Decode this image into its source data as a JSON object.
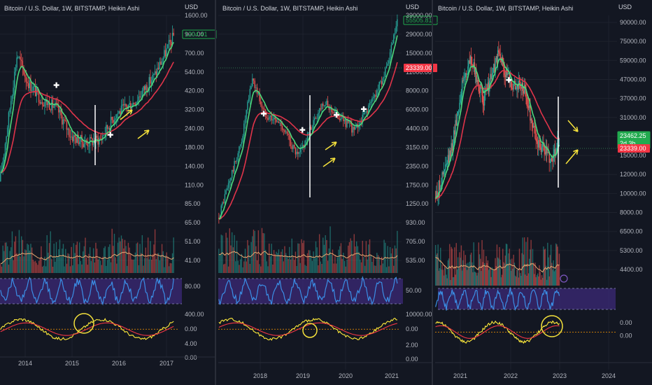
{
  "colors": {
    "bg": "#131722",
    "grid": "#1e222d",
    "divider": "#2a2e39",
    "text": "#b2b5be",
    "green": "#26a69a",
    "red": "#ef5350",
    "ema_green": "#4cd97b",
    "ema_red": "#e0344a",
    "volume_ma": "#e8a870",
    "rsi_line": "#3b8fe6",
    "rsi_band": "#3c2a78",
    "osc_yellow": "#ffeb3b",
    "osc_red": "#f23645",
    "orange": "#ff9800",
    "annot_yellow": "#f5e23c",
    "annot_white": "#ffffff",
    "badge_green": "#22ab4f",
    "badge_red": "#f23645",
    "alert_purple": "#7e57c2"
  },
  "chart_data": [
    {
      "type": "candlestick",
      "title": "Bitcoin / U.S. Dollar, 1W, BITSTAMP, Heikin Ashi",
      "currency": "USD",
      "y_scale": "log",
      "x_tick_labels": [
        "2014",
        "2015",
        "2016",
        "2017"
      ],
      "price_axis_labels": [
        "1600.00",
        "900.00",
        "700.00",
        "540.00",
        "420.00",
        "320.00",
        "240.00",
        "180.00",
        "140.00",
        "110.00",
        "85.00",
        "65.00",
        "51.00",
        "41.00"
      ],
      "rsi_axis_labels": [
        "80.00"
      ],
      "osc_axis_labels": [
        "400.00",
        "0.00"
      ],
      "extra_axis_labels": [
        "4.00",
        "0.00"
      ],
      "last_price_label": "1204.41",
      "trend": {
        "x": [
          2013.5,
          2013.9,
          2014.1,
          2014.4,
          2014.7,
          2015.0,
          2015.3,
          2015.6,
          2015.9,
          2016.3,
          2016.7,
          2017.1
        ],
        "close": [
          100,
          900,
          600,
          450,
          400,
          260,
          235,
          250,
          360,
          440,
          650,
          1200
        ]
      },
      "markers": [
        {
          "x": 2014.7,
          "price": 560
        },
        {
          "x": 2015.8,
          "price": 265
        }
      ],
      "annotations": [
        "white vertical line at mid-2015 low",
        "two yellow arrows pointing up-right",
        "yellow circle on oscillator zero crossing"
      ]
    },
    {
      "type": "candlestick",
      "title": "Bitcoin / U.S. Dollar, 1W, BITSTAMP, Heikin Ashi",
      "currency": "USD",
      "y_scale": "log",
      "x_tick_labels": [
        "2018",
        "2019",
        "2020",
        "2021"
      ],
      "price_axis_labels": [
        "39000.00",
        "29000.00",
        "15000.00",
        "11000.00",
        "8000.00",
        "6000.00",
        "4400.00",
        "3150.00",
        "2350.00",
        "1750.00",
        "1250.00",
        "930.00",
        "705.00",
        "535.00"
      ],
      "rsi_axis_labels": [
        "50.00"
      ],
      "osc_axis_labels": [
        "10000.00",
        "0.00"
      ],
      "extra_axis_labels": [
        "2.00",
        "0.00"
      ],
      "last_price_label": "55505.81",
      "reference_price_label": "23339.00",
      "trend": {
        "x": [
          2017.2,
          2017.7,
          2017.95,
          2018.2,
          2018.6,
          2018.95,
          2019.5,
          2019.9,
          2020.2,
          2020.6,
          2020.9,
          2021.15
        ],
        "close": [
          1000,
          4500,
          17000,
          8500,
          6500,
          3400,
          10500,
          7500,
          5800,
          11000,
          20000,
          55000
        ]
      },
      "markers": [
        {
          "x": 2018.2,
          "price": 8200
        },
        {
          "x": 2019.05,
          "price": 5900
        },
        {
          "x": 2019.8,
          "price": 8000
        },
        {
          "x": 2020.4,
          "price": 9000
        }
      ],
      "annotations": [
        "white vertical line at end-2018 low",
        "two yellow arrows pointing up-right",
        "yellow circle on oscillator zero crossing"
      ]
    },
    {
      "type": "candlestick",
      "title": "Bitcoin / U.S. Dollar, 1W, BITSTAMP, Heikin Ashi",
      "currency": "USD",
      "y_scale": "log",
      "x_tick_labels": [
        "2021",
        "2022",
        "2023",
        "2024"
      ],
      "price_axis_labels": [
        "90000.00",
        "75000.00",
        "59000.00",
        "47000.00",
        "37000.00",
        "31000.00",
        "25000.00",
        "15000.00",
        "12000.00",
        "10000.00",
        "8000.00",
        "6500.00",
        "5300.00",
        "4400.00"
      ],
      "osc_axis_labels": [
        "0.00",
        "0.00"
      ],
      "last_price_label": "23462.25",
      "countdown_label": "2d 3h",
      "reference_price_label": "23339.00",
      "trend": {
        "x": [
          2020.6,
          2020.9,
          2021.15,
          2021.3,
          2021.55,
          2021.85,
          2022.05,
          2022.35,
          2022.6,
          2022.9,
          2023.05
        ],
        "close": [
          10500,
          18000,
          45000,
          58000,
          35000,
          62000,
          45000,
          40000,
          21000,
          16800,
          23462
        ]
      },
      "markers": [
        {
          "x": 2022.05,
          "price": 45000
        }
      ],
      "annotations": [
        "white vertical line at end-2022 low",
        "yellow arrow pointing down-right",
        "yellow arrow pointing up-right",
        "yellow circle on oscillator zero crossing"
      ]
    }
  ]
}
